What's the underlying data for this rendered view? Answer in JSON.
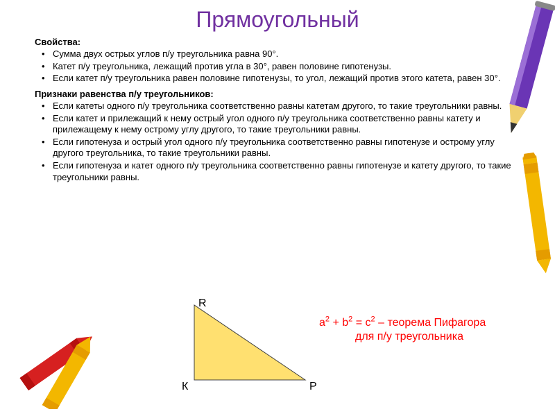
{
  "title": "Прямоугольный",
  "heading1": "Свойства:",
  "props": [
    "Сумма двух острых углов п/у треугольника равна 90°.",
    "Катет п/у треугольника, лежащий против угла в 30°, равен половине гипотенузы.",
    "Если катет п/у треугольника равен половине гипотенузы, то угол, лежащий против этого катета, равен 30°."
  ],
  "heading2": "Признаки равенства п/у треугольников:",
  "signs": [
    "Если катеты одного п/у треугольника соответственно равны катетам другого, то такие треугольники равны.",
    "Если катет и прилежащий к нему острый угол одного п/у треугольника соответственно равны катету и прилежащему  к нему острому углу другого, то такие треугольники равны.",
    "Если гипотенуза и острый угол одного п/у треугольника соответственно равны гипотенузе и острому углу другого треугольника, то такие треугольники равны.",
    "Если гипотенуза и катет одного п/у треугольника соответственно равны гипотенузе и катету другого, то такие треугольники равны."
  ],
  "triangle": {
    "labels": {
      "R": "R",
      "K": "К",
      "P": "P"
    },
    "points": {
      "R": [
        30,
        10
      ],
      "K": [
        30,
        118
      ],
      "P": [
        190,
        118
      ]
    },
    "fill": "#ffe070",
    "stroke": "#404040"
  },
  "theorem": {
    "line1_html": "a<span class=\"sup\">2</span> + b<span class=\"sup\">2</span> = c<span class=\"sup\">2</span> – теорема Пифагора",
    "line2": "для п/у треугольника"
  },
  "decor": {
    "pencil_purple": {
      "body": "#6a35b5",
      "stripe": "#9b6fd6",
      "tip": "#f0d070",
      "lead": "#333"
    },
    "crayon_yellow": {
      "body": "#f3b700",
      "label": "#e59c00"
    },
    "crayon_red": {
      "body": "#d62020",
      "label": "#b51010"
    }
  }
}
